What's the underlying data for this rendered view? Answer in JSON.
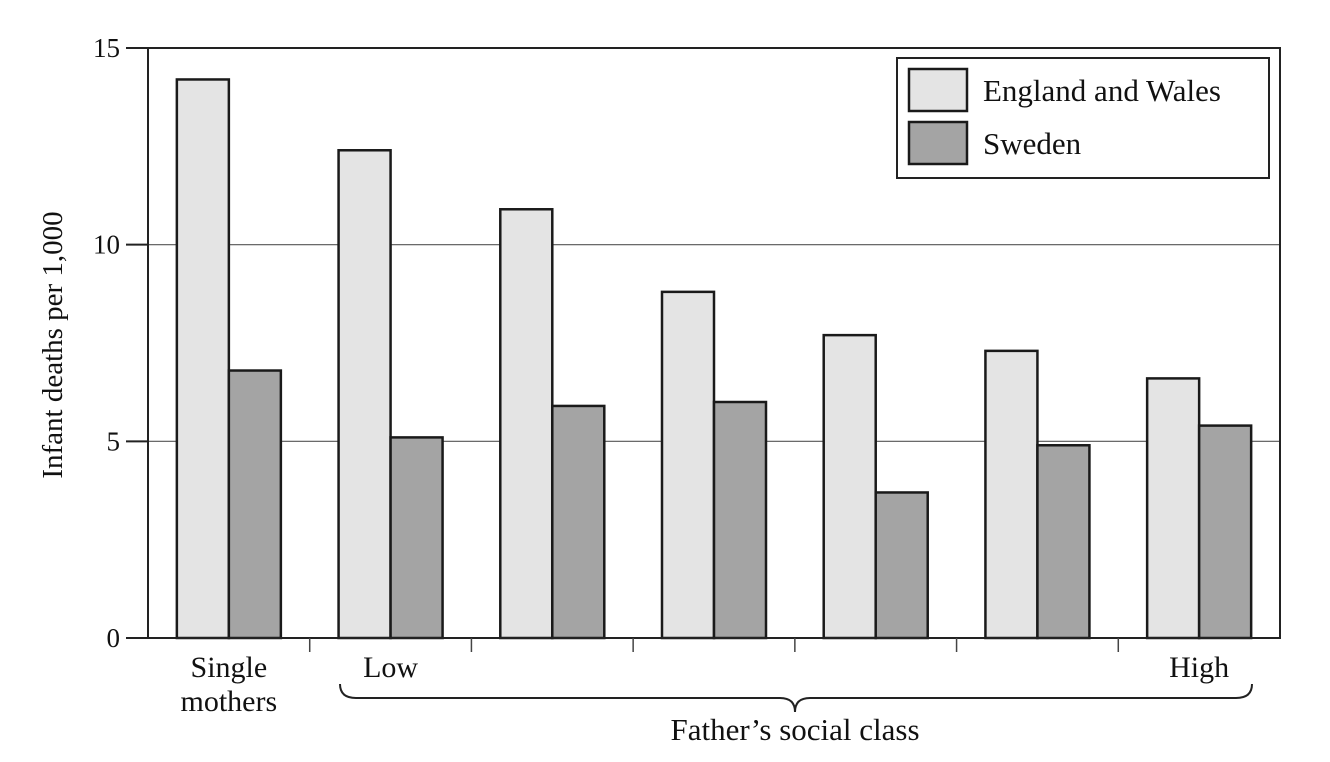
{
  "chart_data": {
    "type": "bar",
    "categories": [
      "Single mothers",
      "",
      "",
      "",
      "",
      "",
      ""
    ],
    "category_lines": [
      [
        "Single",
        "mothers"
      ],
      [
        "Low"
      ],
      [
        ""
      ],
      [
        ""
      ],
      [
        ""
      ],
      [
        ""
      ],
      [
        "High"
      ]
    ],
    "series": [
      {
        "name": "England and Wales",
        "values": [
          14.2,
          12.4,
          10.9,
          8.8,
          7.7,
          7.3,
          6.6
        ],
        "color": "#e4e4e4"
      },
      {
        "name": "Sweden",
        "values": [
          6.8,
          5.1,
          5.9,
          6.0,
          3.7,
          4.9,
          5.4
        ],
        "color": "#a4a4a4"
      }
    ],
    "ylabel": "Infant deaths per 1,000",
    "xlabel": "Father’s social class",
    "ylim": [
      0,
      15
    ],
    "yticks": [
      0,
      5,
      10,
      15
    ],
    "ytick_labels": [
      "0",
      "5",
      "10",
      "15"
    ],
    "grid": true,
    "legend": "top-right"
  }
}
